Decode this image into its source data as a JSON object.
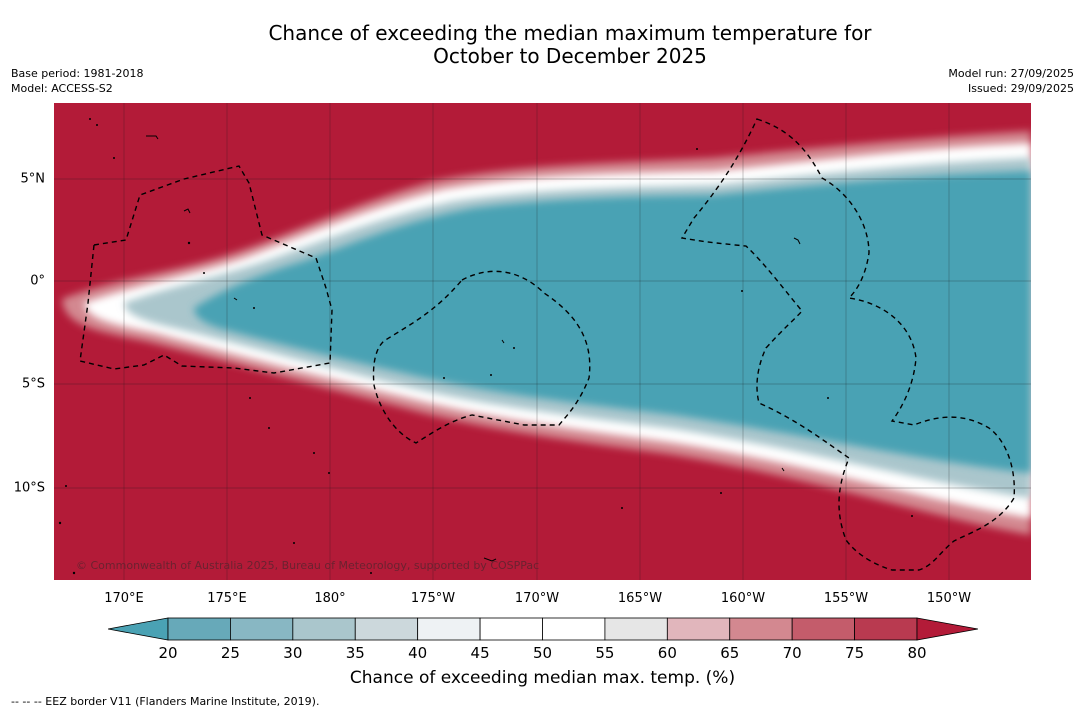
{
  "title": {
    "line1": "Chance of exceeding the median maximum temperature for",
    "line2": "October to December 2025"
  },
  "meta": {
    "base_period": "Base period: 1981-2018",
    "model": "Model: ACCESS-S2",
    "model_run": "Model run: 27/09/2025",
    "issued": "Issued: 29/09/2025"
  },
  "map": {
    "copyright": "© Commonwealth of Australia 2025, Bureau of Meteorology, supported by COSPPac",
    "lat_labels": [
      "5°N",
      "0°",
      "5°S",
      "10°S"
    ],
    "lon_labels": [
      "170°E",
      "175°E",
      "180°",
      "175°W",
      "170°W",
      "165°W",
      "160°W",
      "155°W",
      "150°W"
    ],
    "colors": {
      "high": "#b31b38",
      "low": "#4aa2b4",
      "mid": "#ffffff"
    }
  },
  "colorbar": {
    "ticks": [
      "20",
      "25",
      "30",
      "35",
      "40",
      "45",
      "50",
      "55",
      "60",
      "65",
      "70",
      "75",
      "80"
    ],
    "colors": [
      "#4aa2b4",
      "#67a9b9",
      "#88b7c3",
      "#aac6cc",
      "#ccd8dc",
      "#eef2f4",
      "#ffffff",
      "#ffffff",
      "#e6e6e6",
      "#e1b6bc",
      "#d38890",
      "#c45c6b",
      "#b93a50",
      "#b31b38"
    ],
    "label": "Chance of exceeding median max. temp. (%)"
  },
  "legend": {
    "eez": "--  --  -- EEZ border V11 (Flanders Marine Institute, 2019)."
  }
}
